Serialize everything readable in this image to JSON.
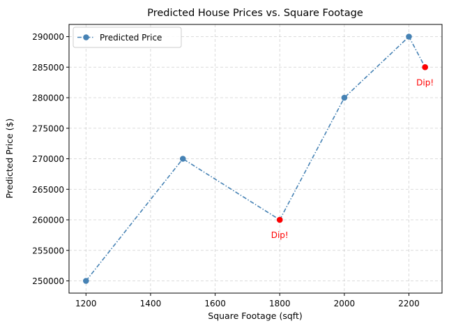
{
  "chart_data": {
    "type": "line",
    "title": "Predicted House Prices vs. Square Footage",
    "xlabel": "Square Footage (sqft)",
    "ylabel": "Predicted Price ($)",
    "xlim": [
      1147.5,
      2302.5
    ],
    "ylim": [
      248000,
      292000
    ],
    "xticks": [
      1200,
      1400,
      1600,
      1800,
      2000,
      2200
    ],
    "yticks": [
      250000,
      255000,
      260000,
      265000,
      270000,
      275000,
      280000,
      285000,
      290000
    ],
    "grid": true,
    "legend_position": "top-left",
    "series": [
      {
        "name": "Predicted Price",
        "color": "#4682b4",
        "line_style": "dash-dot",
        "marker": "circle",
        "x": [
          1200,
          1500,
          1800,
          2000,
          2200,
          2250
        ],
        "y": [
          250000,
          270000,
          260000,
          280000,
          290000,
          285000
        ]
      }
    ],
    "highlighted_points": [
      {
        "x": 1800,
        "y": 260000,
        "color": "#ff0000",
        "label": "Dip!"
      },
      {
        "x": 2250,
        "y": 285000,
        "color": "#ff0000",
        "label": "Dip!"
      }
    ]
  }
}
